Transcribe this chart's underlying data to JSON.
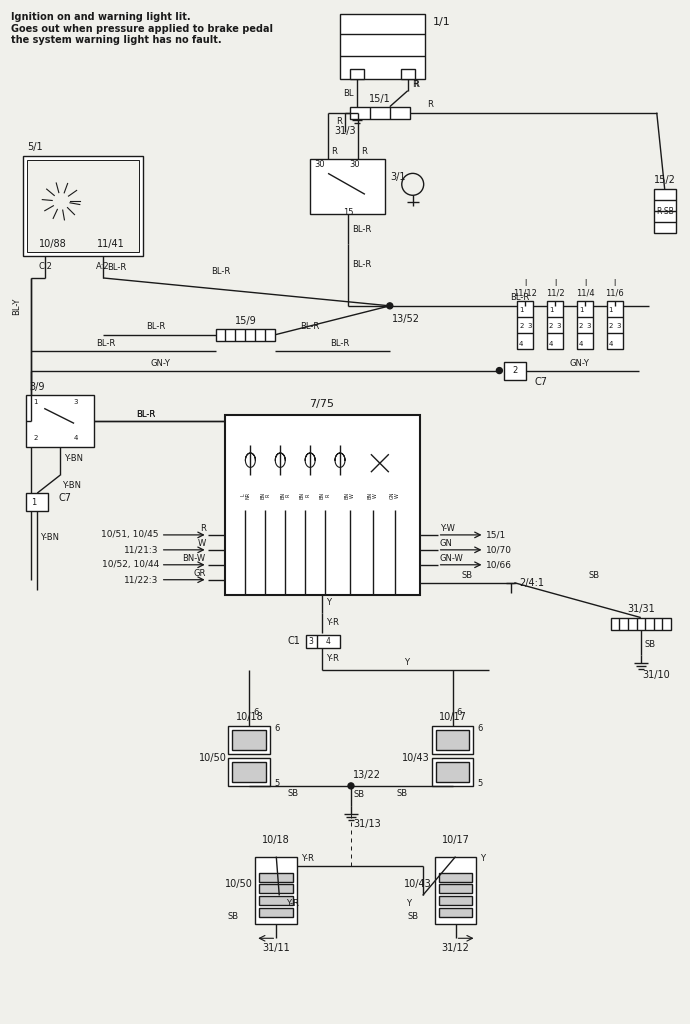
{
  "bg_color": "#f0f0eb",
  "line_color": "#1a1a1a",
  "title_line1": "Ignition on and warning light lit.",
  "title_line2": "Goes out when pressure applied to brake pedal",
  "title_line3": "the system warning light has no fault.",
  "fig_width": 6.9,
  "fig_height": 10.24
}
